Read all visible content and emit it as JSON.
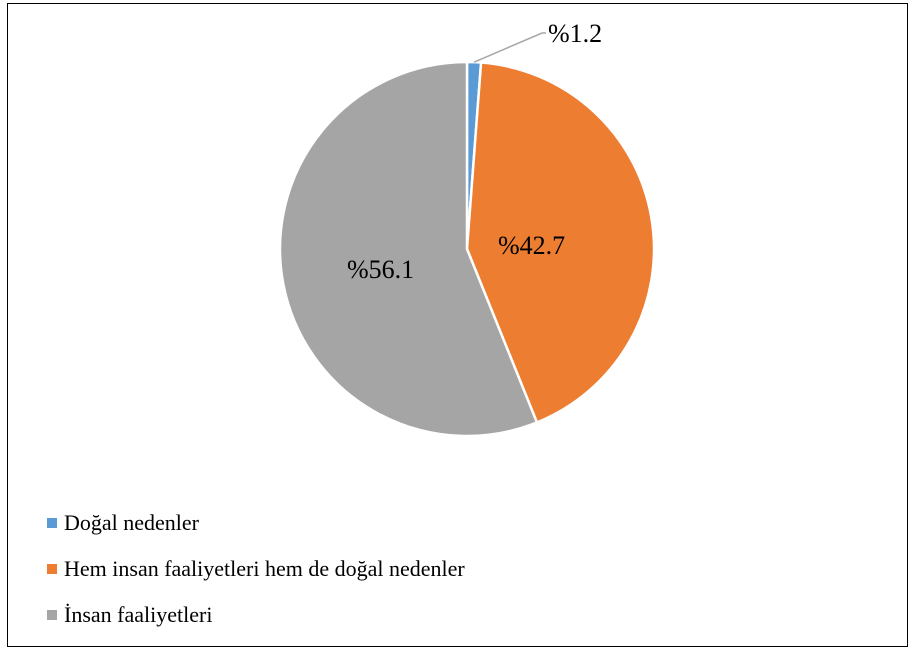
{
  "chart_data": {
    "type": "pie",
    "slices": [
      {
        "label": "Doğal nedenler",
        "value": 1.2,
        "display": "%1.2",
        "color": "#5B9BD5"
      },
      {
        "label": "Hem insan faaliyetleri hem de doğal nedenler",
        "value": 42.7,
        "display": "%42.7",
        "color": "#ED7D31"
      },
      {
        "label": "İnsan faaliyetleri",
        "value": 56.1,
        "display": "%56.1",
        "color": "#A5A5A5"
      }
    ],
    "start_angle": "top (12 o'clock), clockwise",
    "legend_position": "bottom-left",
    "title": ""
  }
}
